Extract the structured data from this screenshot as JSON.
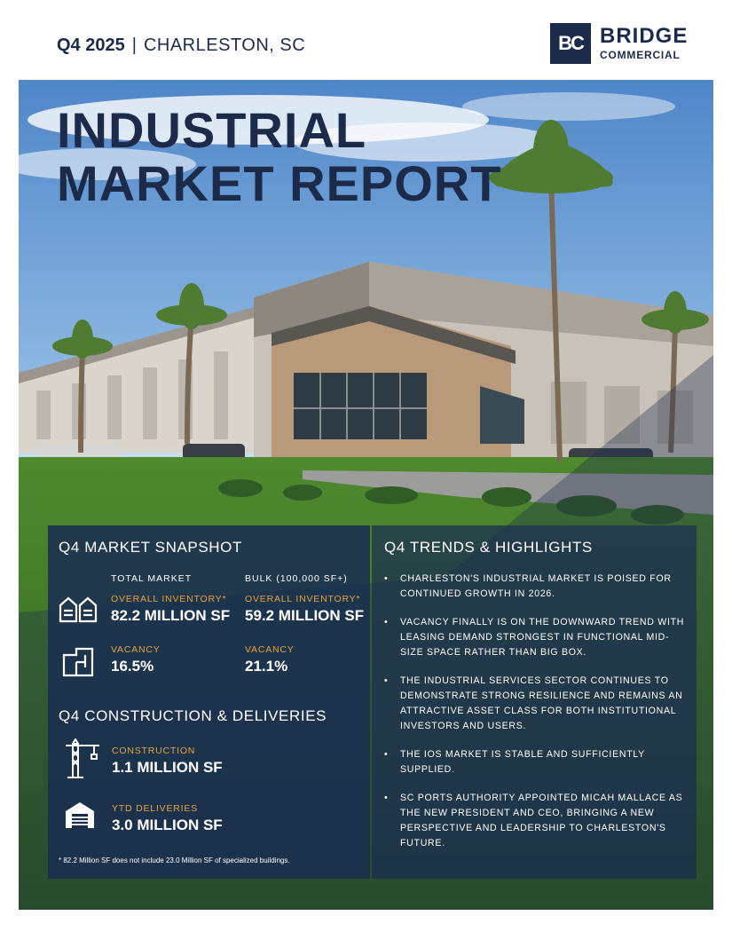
{
  "header": {
    "quarter": "Q4 2025",
    "separator": "|",
    "city": "CHARLESTON, SC"
  },
  "logo": {
    "mark": "BC",
    "name": "BRIDGE",
    "sub": "COMMERCIAL"
  },
  "title": {
    "line1": "INDUSTRIAL",
    "line2": "MARKET REPORT"
  },
  "snapshot": {
    "heading": "Q4 MARKET SNAPSHOT",
    "col_total": "TOTAL MARKET",
    "col_bulk": "BULK (100,000 SF+)",
    "total_inventory_label": "OVERALL INVENTORY*",
    "total_inventory_value": "82.2 MILLION SF",
    "bulk_inventory_label": "OVERALL INVENTORY*",
    "bulk_inventory_value": "59.2 MILLION SF",
    "total_vacancy_label": "VACANCY",
    "total_vacancy_value": "16.5%",
    "bulk_vacancy_label": "VACANCY",
    "bulk_vacancy_value": "21.1%"
  },
  "construction": {
    "heading": "Q4 CONSTRUCTION & DELIVERIES",
    "construction_label": "CONSTRUCTION",
    "construction_value": "1.1 MILLION SF",
    "deliveries_label": "YTD DELIVERIES",
    "deliveries_value": "3.0 MILLION SF"
  },
  "footnote": "*  82.2 Million SF does not include 23.0 Million SF of specialized buildings.",
  "trends": {
    "heading": "Q4 TRENDS & HIGHLIGHTS",
    "items": [
      "CHARLESTON'S INDUSTRIAL MARKET IS POISED FOR CONTINUED GROWTH IN 2026.",
      "VACANCY FINALLY IS ON THE DOWNWARD TREND WITH LEASING DEMAND STRONGEST IN FUNCTIONAL MID-SIZE SPACE RATHER THAN BIG BOX.",
      "THE INDUSTRIAL SERVICES SECTOR CONTINUES TO DEMONSTRATE STRONG RESILIENCE AND REMAINS AN ATTRACTIVE ASSET CLASS FOR BOTH INSTITUTIONAL INVESTORS AND USERS.",
      "THE IOS MARKET IS STABLE AND SUFFICIENTLY SUPPLIED.",
      "SC PORTS AUTHORITY APPOINTED MICAH MALLACE AS THE NEW PRESIDENT AND CEO, BRINGING A NEW PERSPECTIVE AND LEADERSHIP TO CHARLESTON'S FUTURE."
    ]
  },
  "colors": {
    "navy": "#1c2b4a",
    "accent": "#e8a33a"
  }
}
